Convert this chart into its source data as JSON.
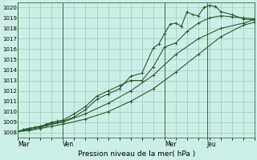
{
  "xlabel": "Pression niveau de la mer( hPa )",
  "bg_color": "#cceee8",
  "grid_color": "#99ccbb",
  "line_color": "#2d5a2d",
  "ylim": [
    1007.5,
    1020.5
  ],
  "ytick_vals": [
    1008,
    1009,
    1010,
    1011,
    1012,
    1013,
    1014,
    1015,
    1016,
    1017,
    1018,
    1019,
    1020
  ],
  "xtick_labels": [
    "Mar",
    "Ven",
    "Mer",
    "Jeu"
  ],
  "xtick_positions": [
    0,
    16,
    52,
    67
  ],
  "vline_positions": [
    0,
    16,
    52,
    67
  ],
  "xlim": [
    0,
    84
  ],
  "series": [
    {
      "x": [
        0,
        2,
        4,
        6,
        8,
        10,
        12,
        14,
        16,
        20,
        24,
        28,
        32,
        36,
        40,
        44,
        48,
        50,
        52,
        54,
        56,
        58,
        60,
        62,
        64,
        66,
        68,
        70,
        72,
        76,
        80,
        84
      ],
      "y": [
        1008.1,
        1008.3,
        1008.4,
        1008.5,
        1008.6,
        1008.7,
        1008.9,
        1009.0,
        1009.1,
        1009.5,
        1010.2,
        1011.2,
        1011.7,
        1012.2,
        1013.4,
        1013.7,
        1016.1,
        1016.5,
        1017.5,
        1018.4,
        1018.5,
        1018.2,
        1019.6,
        1019.3,
        1019.2,
        1020.0,
        1020.2,
        1020.1,
        1019.6,
        1019.3,
        1018.9,
        1018.8
      ]
    },
    {
      "x": [
        0,
        2,
        4,
        6,
        8,
        10,
        12,
        14,
        16,
        20,
        24,
        28,
        32,
        36,
        40,
        44,
        48,
        52,
        56,
        60,
        64,
        68,
        72,
        76,
        80,
        84
      ],
      "y": [
        1008.1,
        1008.3,
        1008.4,
        1008.5,
        1008.6,
        1008.8,
        1009.0,
        1009.1,
        1009.2,
        1009.8,
        1010.5,
        1011.5,
        1012.0,
        1012.5,
        1013.0,
        1013.0,
        1014.3,
        1016.2,
        1016.6,
        1017.7,
        1018.5,
        1019.0,
        1019.2,
        1019.1,
        1019.0,
        1018.9
      ]
    },
    {
      "x": [
        0,
        4,
        8,
        12,
        16,
        24,
        32,
        40,
        48,
        56,
        64,
        72,
        80,
        84
      ],
      "y": [
        1008.1,
        1008.3,
        1008.5,
        1008.8,
        1009.0,
        1009.8,
        1010.8,
        1012.0,
        1013.5,
        1015.5,
        1017.0,
        1018.0,
        1018.5,
        1018.85
      ]
    },
    {
      "x": [
        0,
        4,
        8,
        12,
        16,
        24,
        32,
        40,
        48,
        56,
        64,
        72,
        80,
        84
      ],
      "y": [
        1008.1,
        1008.2,
        1008.4,
        1008.6,
        1008.8,
        1009.3,
        1010.0,
        1011.0,
        1012.2,
        1013.8,
        1015.5,
        1017.2,
        1018.3,
        1018.6
      ]
    }
  ],
  "marker": "+",
  "marker_size": 3,
  "linewidth": 0.8
}
